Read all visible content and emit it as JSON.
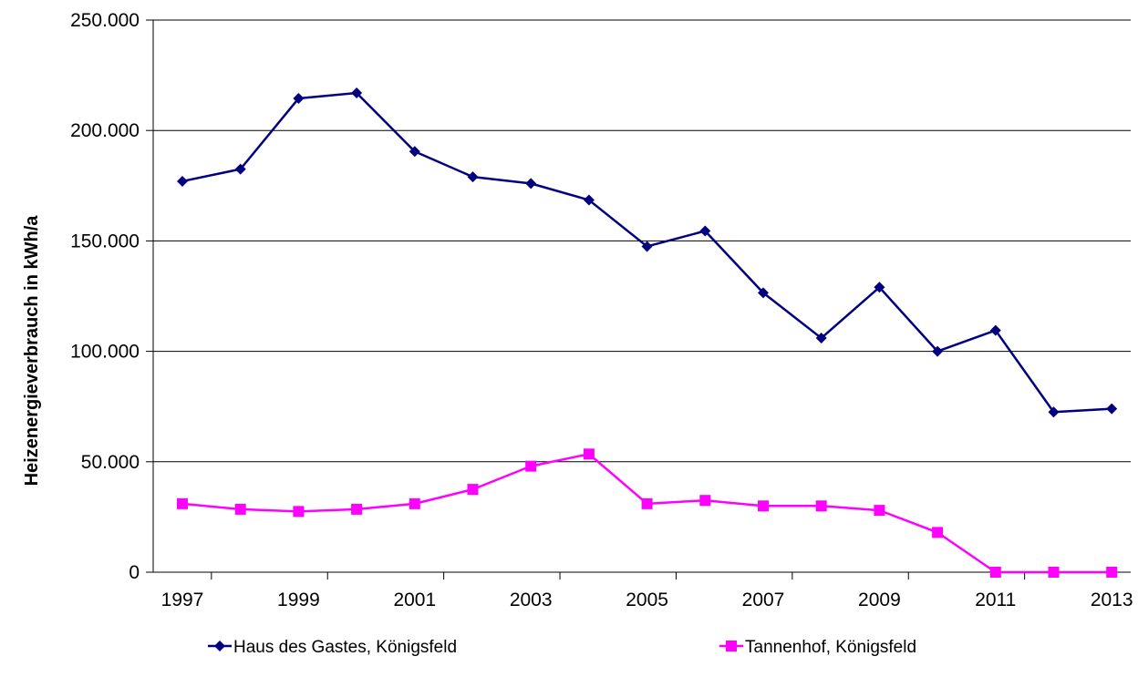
{
  "chart_data": {
    "type": "line",
    "title": "",
    "ylabel": "Heizenergieverbrauch in kWh/a",
    "xlabel": "",
    "x": [
      1997,
      1998,
      1999,
      2000,
      2001,
      2002,
      2003,
      2004,
      2005,
      2006,
      2007,
      2008,
      2009,
      2010,
      2011,
      2012,
      2013
    ],
    "x_tick_labels": [
      "1997",
      "1999",
      "2001",
      "2003",
      "2005",
      "2007",
      "2009",
      "2011",
      "2013"
    ],
    "y_tick_labels": [
      "0",
      "50.000",
      "100.000",
      "150.000",
      "200.000",
      "250.000"
    ],
    "y_ticks": [
      0,
      50000,
      100000,
      150000,
      200000,
      250000
    ],
    "ylim": [
      0,
      250000
    ],
    "grid": "horizontal",
    "legend_position": "bottom",
    "series": [
      {
        "name": "Haus des Gastes, Königsfeld",
        "color": "#000080",
        "marker": "diamond",
        "values": [
          177000,
          182500,
          214500,
          217000,
          190500,
          179000,
          176000,
          168500,
          147500,
          154500,
          126500,
          106000,
          129000,
          100000,
          109500,
          72500,
          74000
        ]
      },
      {
        "name": "Tannenhof, Königsfeld",
        "color": "#ff00ff",
        "marker": "square",
        "values": [
          31000,
          28500,
          27500,
          28500,
          31000,
          37500,
          48000,
          53500,
          31000,
          32500,
          30000,
          30000,
          28000,
          18000,
          0,
          0,
          0
        ]
      }
    ]
  }
}
